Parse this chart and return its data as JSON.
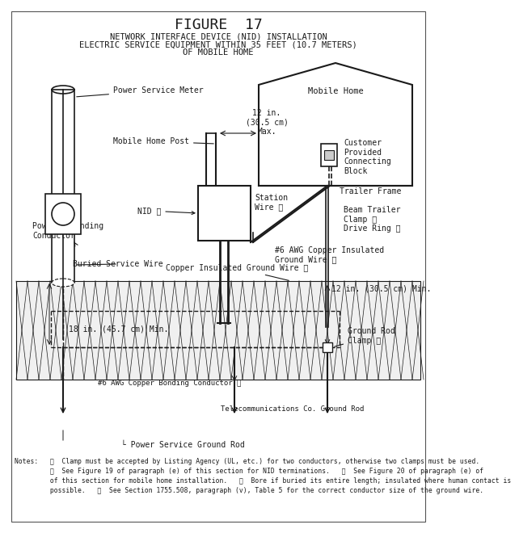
{
  "title": "FIGURE  17",
  "subtitle1": "NETWORK INTERFACE DEVICE (NID) INSTALLATION",
  "subtitle2": "ELECTRIC SERVICE EQUIPMENT WITHIN 35 FEET (10.7 METERS)",
  "subtitle3": "OF MOBILE HOME",
  "bg_color": "#ffffff",
  "lc": "#1a1a1a",
  "note1": "Notes:   ①  Clamp must be accepted by Listing Agency (UL, etc.) for two conductors, otherwise two clamps must be used.",
  "note2": "         ②  See Figure 19 of paragraph (e) of this section for NID terminations.   ③  See Figure 20 of paragraph (e) of",
  "note3": "         of this section for mobile home installation.   ④  Bore if buried its entire length; insulated where human contact is",
  "note4": "         possible.   ⑤  See Section 1755.508, paragraph (v), Table 5 for the correct conductor size of the ground wire."
}
